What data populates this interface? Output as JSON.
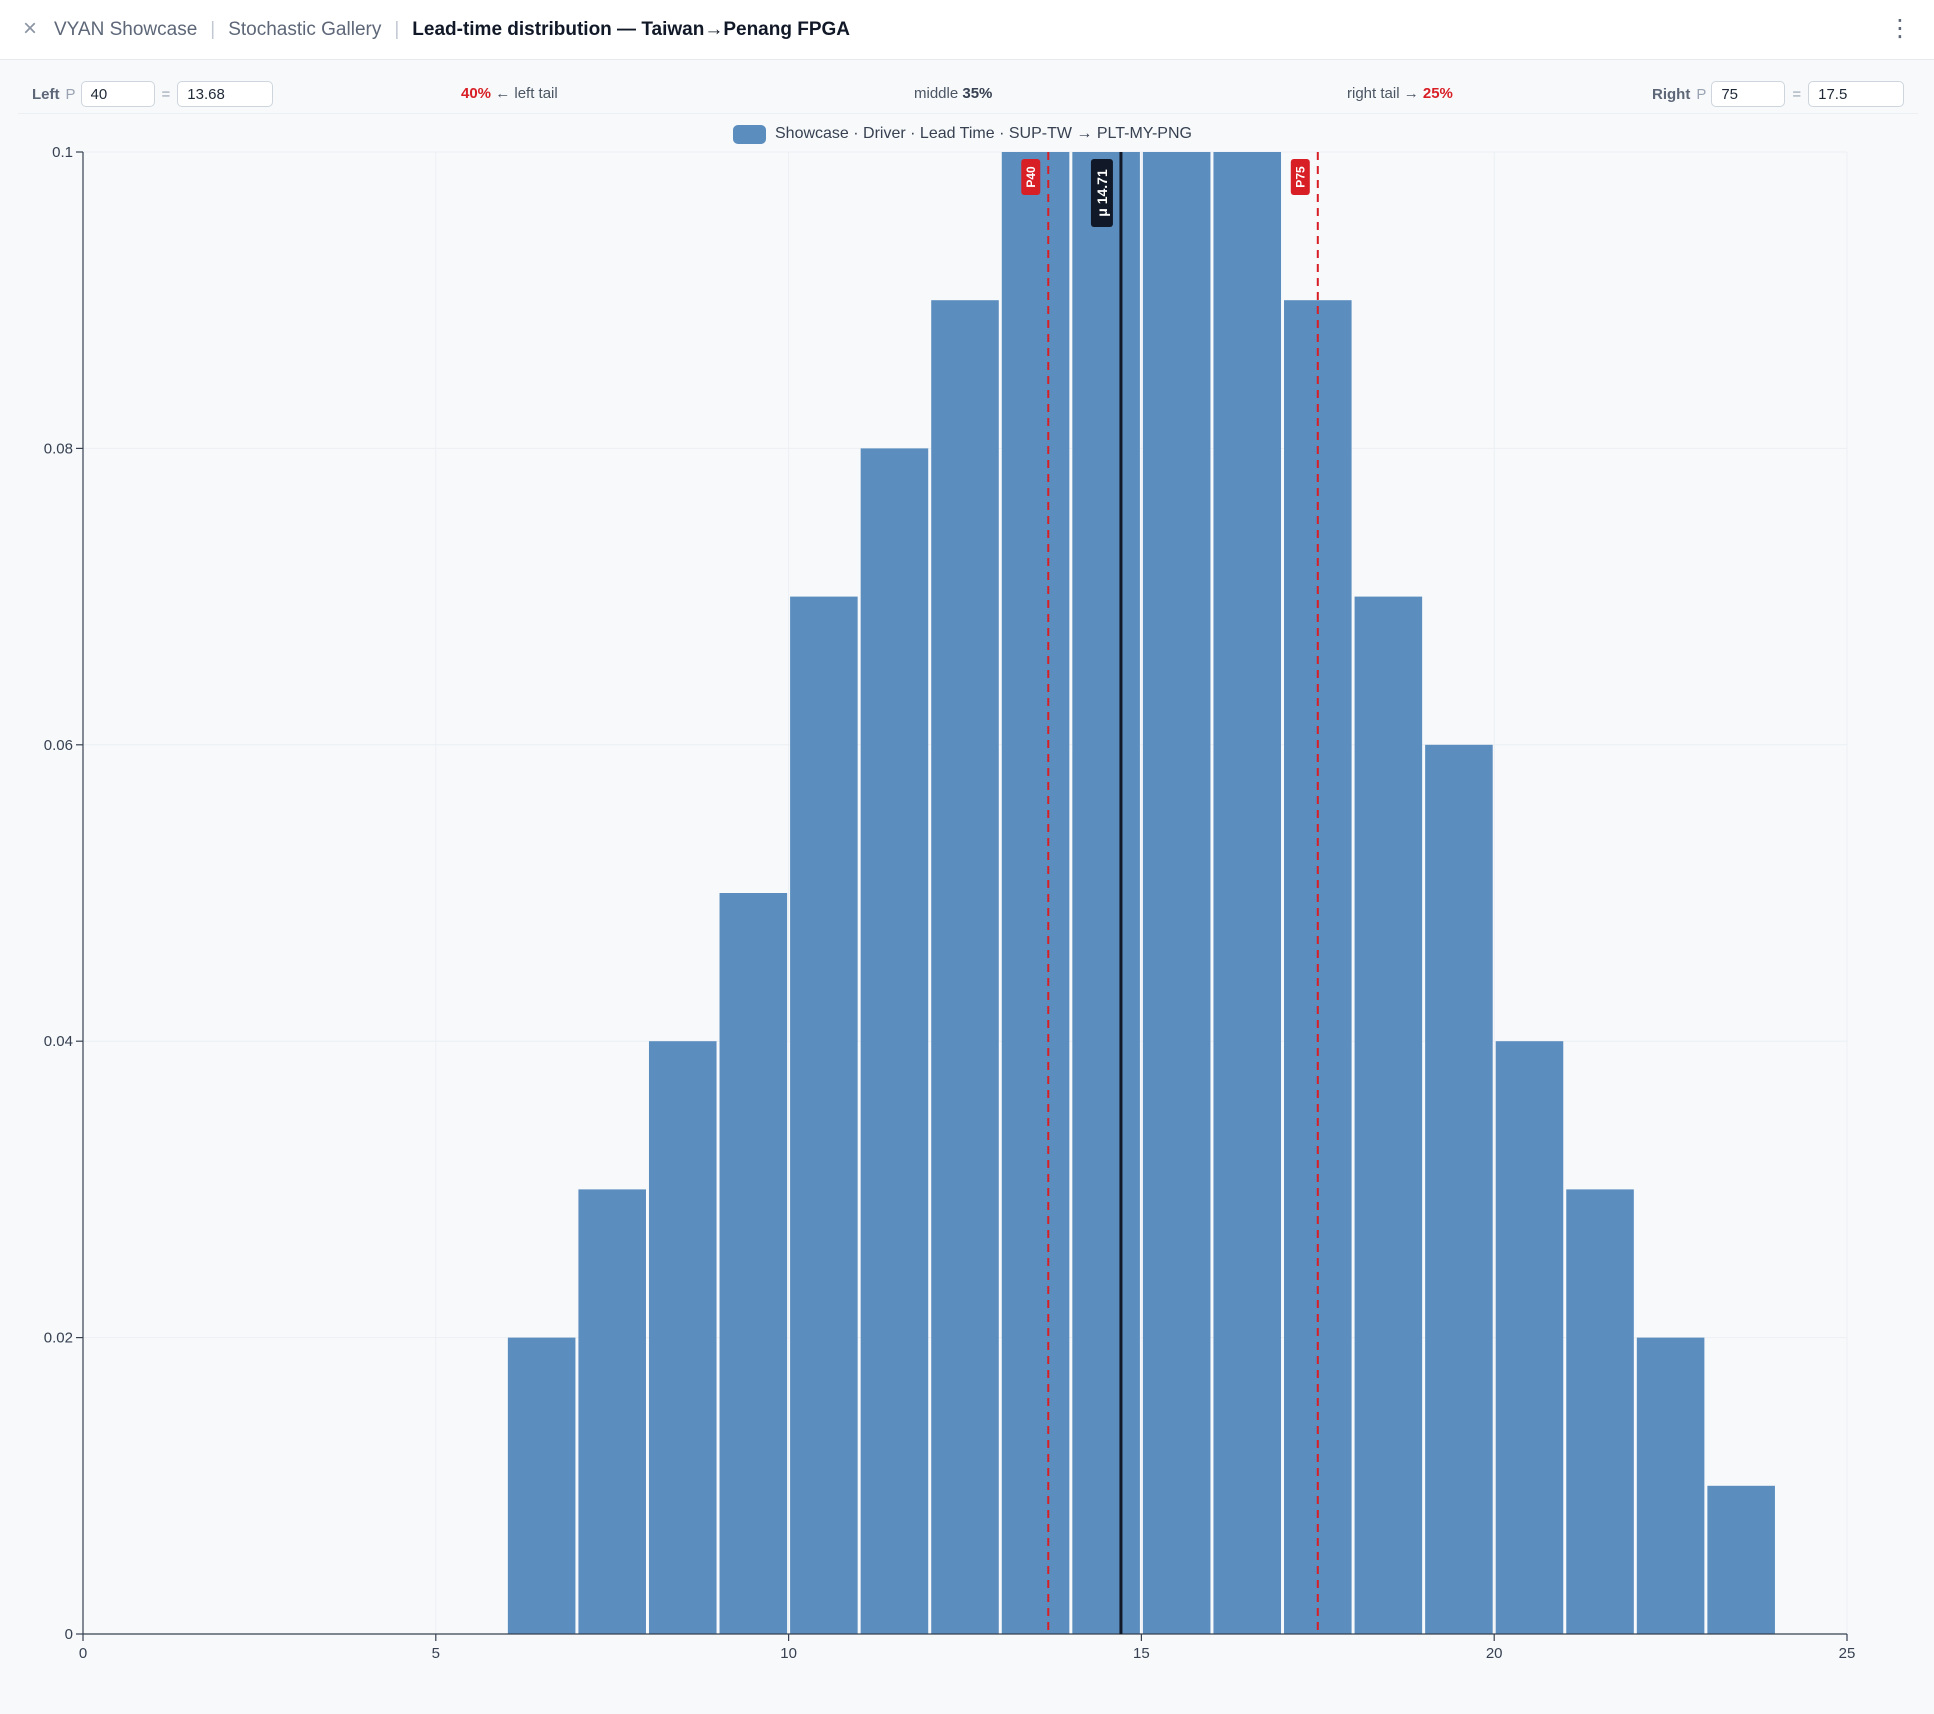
{
  "header": {
    "breadcrumbs": [
      "VYAN Showcase",
      "Stochastic Gallery"
    ],
    "title": "Lead-time distribution — Taiwan→Penang FPGA"
  },
  "icons": {
    "close": "close-icon",
    "menu": "more-vertical-icon"
  },
  "controls": {
    "left_label": "Left",
    "p_label": "P",
    "equals": "=",
    "left_p": "40",
    "left_value": "13.68",
    "left_tail_pct": "40%",
    "left_tail_text": "← left tail",
    "middle_text": "middle",
    "middle_pct": "35%",
    "right_tail_text": "right tail →",
    "right_tail_pct": "25%",
    "right_label": "Right",
    "right_p": "75",
    "right_value": "17.5"
  },
  "colors": {
    "bar": "#5b8dbe",
    "marker_red": "#d81f26",
    "mean_line": "#111827"
  },
  "chart_data": {
    "type": "bar",
    "legend": [
      "Showcase · Driver · Lead Time · SUP-TW → PLT-MY-PNG"
    ],
    "legend_position": "top-center",
    "x_ticks": [
      0,
      5,
      10,
      15,
      20,
      25
    ],
    "y_ticks": [
      "0",
      "0.02",
      "0.04",
      "0.06",
      "0.08",
      "0.1"
    ],
    "xlim": [
      0,
      25
    ],
    "ylim": [
      0,
      0.1
    ],
    "grid": true,
    "bins": [
      {
        "start": 6,
        "end": 7,
        "value": 0.02
      },
      {
        "start": 7,
        "end": 8,
        "value": 0.03
      },
      {
        "start": 8,
        "end": 9,
        "value": 0.04
      },
      {
        "start": 9,
        "end": 10,
        "value": 0.05
      },
      {
        "start": 10,
        "end": 11,
        "value": 0.07
      },
      {
        "start": 11,
        "end": 12,
        "value": 0.08
      },
      {
        "start": 12,
        "end": 13,
        "value": 0.09
      },
      {
        "start": 13,
        "end": 14,
        "value": 0.1
      },
      {
        "start": 14,
        "end": 15,
        "value": 0.1
      },
      {
        "start": 15,
        "end": 16,
        "value": 0.1
      },
      {
        "start": 16,
        "end": 17,
        "value": 0.1
      },
      {
        "start": 17,
        "end": 18,
        "value": 0.09
      },
      {
        "start": 18,
        "end": 19,
        "value": 0.07
      },
      {
        "start": 19,
        "end": 20,
        "value": 0.06
      },
      {
        "start": 20,
        "end": 21,
        "value": 0.04
      },
      {
        "start": 21,
        "end": 22,
        "value": 0.03
      },
      {
        "start": 22,
        "end": 23,
        "value": 0.02
      },
      {
        "start": 23,
        "end": 24,
        "value": 0.01
      }
    ],
    "markers": [
      {
        "label": "P40",
        "x": 13.68,
        "style": "dashed"
      },
      {
        "label": "P75",
        "x": 17.5,
        "style": "dashed"
      }
    ],
    "mean": {
      "label": "μ 14.71",
      "x": 14.71
    }
  }
}
